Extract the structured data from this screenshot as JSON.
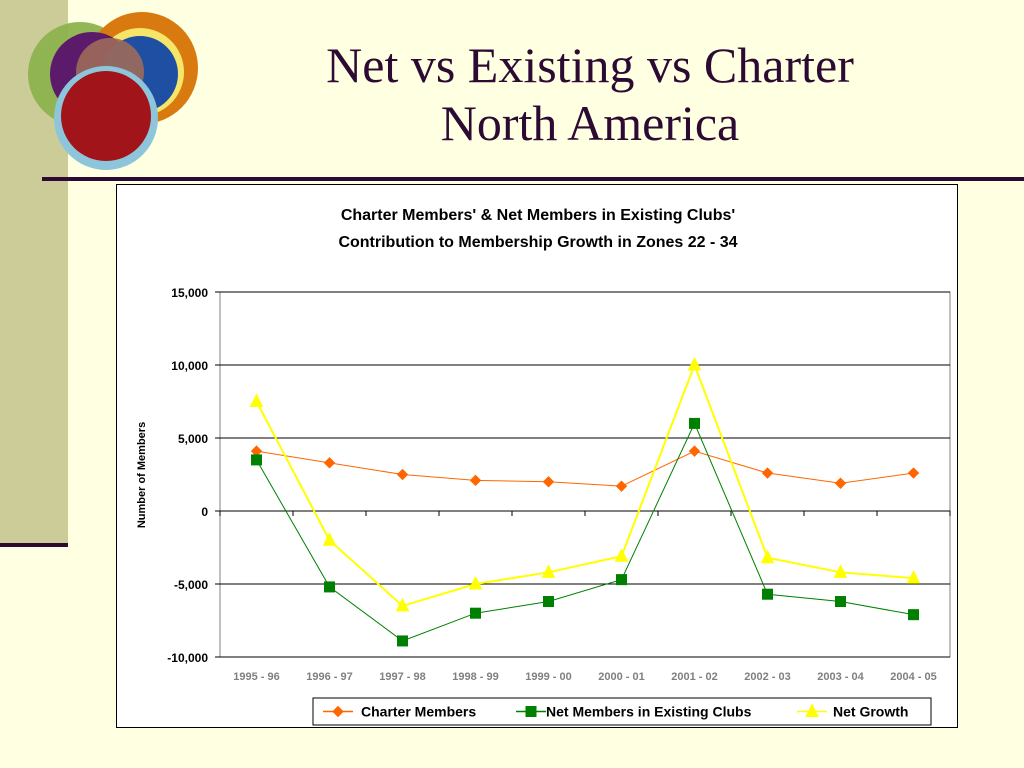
{
  "slide": {
    "title_line1": "Net vs Existing vs Charter",
    "title_line2": "North America"
  },
  "colors": {
    "background": "#FFFFE1",
    "title": "#2D0A33",
    "charter": "#FF6600",
    "net_existing": "#008000",
    "net_growth": "#FFFF00"
  },
  "chart_data": {
    "type": "line",
    "title_line1": "Charter Members' & Net Members in Existing Clubs'",
    "title_line2": "Contribution to Membership Growth in Zones 22 - 34",
    "ylabel": "Number of Members",
    "xlabel": "",
    "ylim": [
      -10000,
      15000
    ],
    "yticks": [
      15000,
      10000,
      5000,
      0,
      -5000,
      -10000
    ],
    "ytick_labels": [
      "15,000",
      "10,000",
      "5,000",
      "0",
      "-5,000",
      "-10,000"
    ],
    "grid": true,
    "legend_position": "bottom-right",
    "categories": [
      "1995 - 96",
      "1996 - 97",
      "1997 - 98",
      "1998 - 99",
      "1999 - 00",
      "2000 - 01",
      "2001 - 02",
      "2002 - 03",
      "2003 - 04",
      "2004 - 05"
    ],
    "series": [
      {
        "name": "Charter Members",
        "color": "#FF6600",
        "marker": "diamond",
        "values": [
          4100,
          3300,
          2500,
          2100,
          2000,
          1700,
          4100,
          2600,
          1900,
          2600
        ]
      },
      {
        "name": "Net Members in Existing Clubs",
        "color": "#008000",
        "marker": "square",
        "values": [
          3500,
          -5200,
          -8900,
          -7000,
          -6200,
          -4700,
          6000,
          -5700,
          -6200,
          -7100
        ]
      },
      {
        "name": "Net Growth",
        "color": "#FFFF00",
        "marker": "triangle",
        "values": [
          7500,
          -2000,
          -6500,
          -5000,
          -4200,
          -3100,
          10000,
          -3200,
          -4200,
          -4600
        ]
      }
    ]
  }
}
